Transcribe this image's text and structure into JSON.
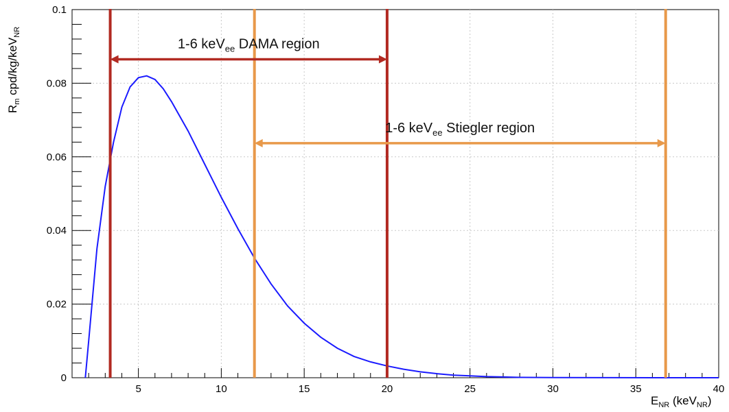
{
  "chart_data": {
    "type": "line",
    "title": "",
    "xlabel": {
      "main": "E",
      "sub": "NR",
      "rest": " (keV",
      "sub2": "NR",
      "close": ")"
    },
    "ylabel": {
      "main": "R",
      "sub": "m",
      "rest": " cpd/kg/keV",
      "sub2": "NR"
    },
    "xlim": [
      1,
      40
    ],
    "ylim": [
      0,
      0.1
    ],
    "x_ticks": [
      5,
      10,
      15,
      20,
      25,
      30,
      35,
      40
    ],
    "y_ticks": [
      0,
      0.02,
      0.04,
      0.06,
      0.08,
      0.1
    ],
    "y_tick_labels": [
      "0",
      "0.02",
      "0.04",
      "0.06",
      "0.08",
      "0.1"
    ],
    "grid": true,
    "series": [
      {
        "color": "#1a1aff",
        "x": [
          1.8,
          2.0,
          2.5,
          3.0,
          3.5,
          4.0,
          4.5,
          5.0,
          5.5,
          6.0,
          6.5,
          7.0,
          8.0,
          9.0,
          10.0,
          11.0,
          12.0,
          13.0,
          14.0,
          15.0,
          16.0,
          17.0,
          18.0,
          19.0,
          20.0,
          21.0,
          22.0,
          23.0,
          24.0,
          25.0,
          26.0,
          27.0,
          28.0,
          30.0,
          33.0,
          36.0,
          40.0
        ],
        "y": [
          0.0,
          0.01,
          0.035,
          0.052,
          0.064,
          0.0735,
          0.079,
          0.0815,
          0.082,
          0.081,
          0.0785,
          0.075,
          0.067,
          0.058,
          0.049,
          0.0405,
          0.0325,
          0.0255,
          0.0195,
          0.0148,
          0.011,
          0.008,
          0.0058,
          0.0043,
          0.0032,
          0.0023,
          0.0016,
          0.0011,
          0.0007,
          0.0005,
          0.0003,
          0.0002,
          0.0001,
          5e-05,
          2e-05,
          0.0,
          0.0
        ]
      }
    ],
    "vertical_lines": [
      {
        "x": 3.3,
        "color": "#b22a22",
        "group": "dama"
      },
      {
        "x": 20.0,
        "color": "#b22a22",
        "group": "dama"
      },
      {
        "x": 12.0,
        "color": "#e8994a",
        "group": "stiegler"
      },
      {
        "x": 36.8,
        "color": "#e8994a",
        "group": "stiegler"
      }
    ],
    "annotations": [
      {
        "id": "dama",
        "pre": "1-6 keV",
        "sub": "ee",
        "post": " DAMA region",
        "x1": 3.3,
        "x2": 20.0,
        "y_arrow": 0.0865,
        "y_text": 0.0895,
        "color": "#b22a22"
      },
      {
        "id": "stiegler",
        "pre": "1-6 keV",
        "sub": "ee",
        "post": " Stiegler region",
        "x1": 12.0,
        "x2": 36.8,
        "y_arrow": 0.0637,
        "y_text": 0.0667,
        "color": "#e8994a"
      }
    ]
  }
}
